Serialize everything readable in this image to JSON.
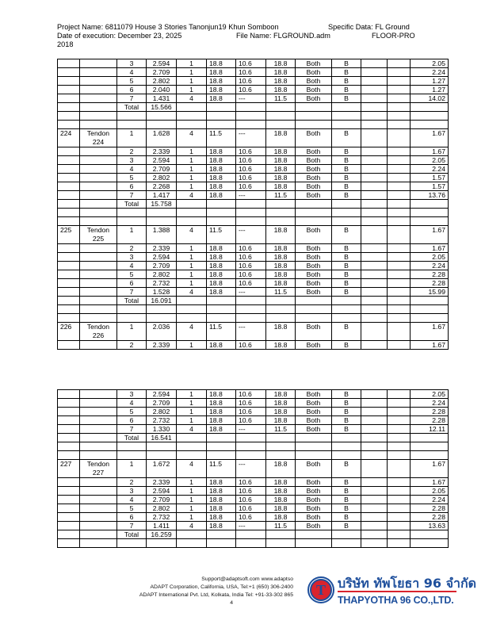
{
  "header": {
    "project_line": "Project Name: 6811079 House 3 Stories Tanonjun19 Khun Somboon",
    "specific_data": "Specific Data: FL Ground",
    "date_line": "Date of execution: December 23, 2025",
    "file_name": "File Name: FLGROUND.adm",
    "program": "FLOOR-PRO",
    "year": "2018"
  },
  "tables": [
    {
      "rows": [
        [
          "",
          "",
          "3",
          "2.594",
          "1",
          "18.8",
          "10.6",
          "18.8",
          "Both",
          "B",
          "",
          "",
          "2.05"
        ],
        [
          "",
          "",
          "4",
          "2.709",
          "1",
          "18.8",
          "10.6",
          "18.8",
          "Both",
          "B",
          "",
          "",
          "2.24"
        ],
        [
          "",
          "",
          "5",
          "2.802",
          "1",
          "18.8",
          "10.6",
          "18.8",
          "Both",
          "B",
          "",
          "",
          "1.27"
        ],
        [
          "",
          "",
          "6",
          "2.040",
          "1",
          "18.8",
          "10.6",
          "18.8",
          "Both",
          "B",
          "",
          "",
          "1.27"
        ],
        [
          "",
          "",
          "7",
          "1.431",
          "4",
          "18.8",
          "---",
          "11.5",
          "Both",
          "B",
          "",
          "",
          "14.02"
        ],
        [
          "",
          "",
          "Total",
          "15.566",
          "",
          "",
          "",
          "",
          "",
          "",
          "",
          "",
          ""
        ],
        [
          "",
          "",
          "",
          "",
          "",
          "",
          "",
          "",
          "",
          "",
          "",
          "",
          ""
        ],
        [
          "",
          "",
          "",
          "",
          "",
          "",
          "",
          "",
          "",
          "",
          "",
          "",
          ""
        ],
        [
          "224",
          "Tendon 224",
          "1",
          "1.628",
          "4",
          "11.5",
          "---",
          "18.8",
          "Both",
          "B",
          "",
          "",
          "1.67"
        ],
        [
          "",
          "",
          "2",
          "2.339",
          "1",
          "18.8",
          "10.6",
          "18.8",
          "Both",
          "B",
          "",
          "",
          "1.67"
        ],
        [
          "",
          "",
          "3",
          "2.594",
          "1",
          "18.8",
          "10.6",
          "18.8",
          "Both",
          "B",
          "",
          "",
          "2.05"
        ],
        [
          "",
          "",
          "4",
          "2.709",
          "1",
          "18.8",
          "10.6",
          "18.8",
          "Both",
          "B",
          "",
          "",
          "2.24"
        ],
        [
          "",
          "",
          "5",
          "2.802",
          "1",
          "18.8",
          "10.6",
          "18.8",
          "Both",
          "B",
          "",
          "",
          "1.57"
        ],
        [
          "",
          "",
          "6",
          "2.268",
          "1",
          "18.8",
          "10.6",
          "18.8",
          "Both",
          "B",
          "",
          "",
          "1.57"
        ],
        [
          "",
          "",
          "7",
          "1.417",
          "4",
          "18.8",
          "---",
          "11.5",
          "Both",
          "B",
          "",
          "",
          "13.76"
        ],
        [
          "",
          "",
          "Total",
          "15.758",
          "",
          "",
          "",
          "",
          "",
          "",
          "",
          "",
          ""
        ],
        [
          "",
          "",
          "",
          "",
          "",
          "",
          "",
          "",
          "",
          "",
          "",
          "",
          ""
        ],
        [
          "",
          "",
          "",
          "",
          "",
          "",
          "",
          "",
          "",
          "",
          "",
          "",
          ""
        ],
        [
          "225",
          "Tendon 225",
          "1",
          "1.388",
          "4",
          "11.5",
          "---",
          "18.8",
          "Both",
          "B",
          "",
          "",
          "1.67"
        ],
        [
          "",
          "",
          "2",
          "2.339",
          "1",
          "18.8",
          "10.6",
          "18.8",
          "Both",
          "B",
          "",
          "",
          "1.67"
        ],
        [
          "",
          "",
          "3",
          "2.594",
          "1",
          "18.8",
          "10.6",
          "18.8",
          "Both",
          "B",
          "",
          "",
          "2.05"
        ],
        [
          "",
          "",
          "4",
          "2.709",
          "1",
          "18.8",
          "10.6",
          "18.8",
          "Both",
          "B",
          "",
          "",
          "2.24"
        ],
        [
          "",
          "",
          "5",
          "2.802",
          "1",
          "18.8",
          "10.6",
          "18.8",
          "Both",
          "B",
          "",
          "",
          "2.28"
        ],
        [
          "",
          "",
          "6",
          "2.732",
          "1",
          "18.8",
          "10.6",
          "18.8",
          "Both",
          "B",
          "",
          "",
          "2.28"
        ],
        [
          "",
          "",
          "7",
          "1.528",
          "4",
          "18.8",
          "---",
          "11.5",
          "Both",
          "B",
          "",
          "",
          "15.99"
        ],
        [
          "",
          "",
          "Total",
          "16.091",
          "",
          "",
          "",
          "",
          "",
          "",
          "",
          "",
          ""
        ],
        [
          "",
          "",
          "",
          "",
          "",
          "",
          "",
          "",
          "",
          "",
          "",
          "",
          ""
        ],
        [
          "",
          "",
          "",
          "",
          "",
          "",
          "",
          "",
          "",
          "",
          "",
          "",
          ""
        ],
        [
          "226",
          "Tendon 226",
          "1",
          "2.036",
          "4",
          "11.5",
          "---",
          "18.8",
          "Both",
          "B",
          "",
          "",
          "1.67"
        ],
        [
          "",
          "",
          "2",
          "2.339",
          "1",
          "18.8",
          "10.6",
          "18.8",
          "Both",
          "B",
          "",
          "",
          "1.67"
        ]
      ]
    },
    {
      "rows": [
        [
          "",
          "",
          "3",
          "2.594",
          "1",
          "18.8",
          "10.6",
          "18.8",
          "Both",
          "B",
          "",
          "",
          "2.05"
        ],
        [
          "",
          "",
          "4",
          "2.709",
          "1",
          "18.8",
          "10.6",
          "18.8",
          "Both",
          "B",
          "",
          "",
          "2.24"
        ],
        [
          "",
          "",
          "5",
          "2.802",
          "1",
          "18.8",
          "10.6",
          "18.8",
          "Both",
          "B",
          "",
          "",
          "2.28"
        ],
        [
          "",
          "",
          "6",
          "2.732",
          "1",
          "18.8",
          "10.6",
          "18.8",
          "Both",
          "B",
          "",
          "",
          "2.28"
        ],
        [
          "",
          "",
          "7",
          "1.330",
          "4",
          "18.8",
          "---",
          "11.5",
          "Both",
          "B",
          "",
          "",
          "12.11"
        ],
        [
          "",
          "",
          "Total",
          "16.541",
          "",
          "",
          "",
          "",
          "",
          "",
          "",
          "",
          ""
        ],
        [
          "",
          "",
          "",
          "",
          "",
          "",
          "",
          "",
          "",
          "",
          "",
          "",
          ""
        ],
        [
          "",
          "",
          "",
          "",
          "",
          "",
          "",
          "",
          "",
          "",
          "",
          "",
          ""
        ],
        [
          "227",
          "Tendon 227",
          "1",
          "1.672",
          "4",
          "11.5",
          "---",
          "18.8",
          "Both",
          "B",
          "",
          "",
          "1.67"
        ],
        [
          "",
          "",
          "2",
          "2.339",
          "1",
          "18.8",
          "10.6",
          "18.8",
          "Both",
          "B",
          "",
          "",
          "1.67"
        ],
        [
          "",
          "",
          "3",
          "2.594",
          "1",
          "18.8",
          "10.6",
          "18.8",
          "Both",
          "B",
          "",
          "",
          "2.05"
        ],
        [
          "",
          "",
          "4",
          "2.709",
          "1",
          "18.8",
          "10.6",
          "18.8",
          "Both",
          "B",
          "",
          "",
          "2.24"
        ],
        [
          "",
          "",
          "5",
          "2.802",
          "1",
          "18.8",
          "10.6",
          "18.8",
          "Both",
          "B",
          "",
          "",
          "2.28"
        ],
        [
          "",
          "",
          "6",
          "2.732",
          "1",
          "18.8",
          "10.6",
          "18.8",
          "Both",
          "B",
          "",
          "",
          "2.28"
        ],
        [
          "",
          "",
          "7",
          "1.411",
          "4",
          "18.8",
          "---",
          "11.5",
          "Both",
          "B",
          "",
          "",
          "13.63"
        ],
        [
          "",
          "",
          "Total",
          "16.259",
          "",
          "",
          "",
          "",
          "",
          "",
          "",
          "",
          ""
        ],
        [
          "",
          "",
          "",
          "",
          "",
          "",
          "",
          "",
          "",
          "",
          "",
          "",
          ""
        ]
      ]
    }
  ],
  "footer": {
    "support": "Support@adaptsoft.com      www.adaptso",
    "line2": "ADAPT Corporation, California, USA,    Tel:+1 (650) 306-2400",
    "line3": "ADAPT International Pvt. Ltd, Kolkata, India Tel: +91-33-302 865",
    "line4": "4"
  },
  "logo": {
    "letter": "T",
    "thai_name": "บริษัท ทัพโยธา 96 จำกัด",
    "english_name": "THAPYOTHA 96 CO.,LTD.",
    "colors": {
      "blue": "#1e4f9c",
      "red": "#d9232d"
    }
  }
}
